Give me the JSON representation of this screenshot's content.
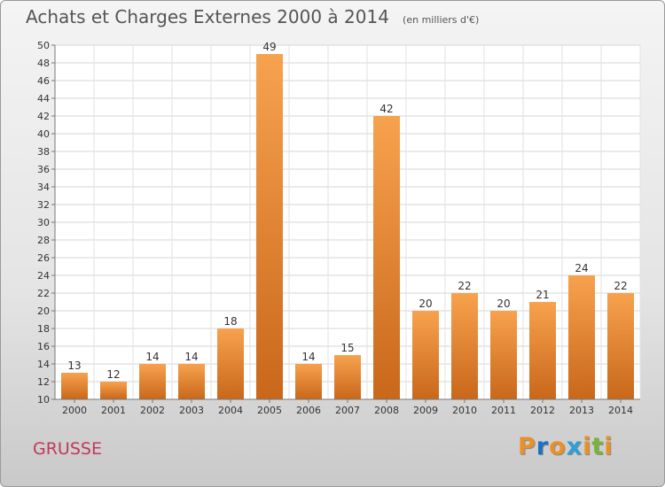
{
  "colors": {
    "bar_light": "#f7a24e",
    "bar_dark": "#c9671a",
    "commune": "#c0395a"
  },
  "chart_data": {
    "type": "bar",
    "title": "Achats et Charges Externes 2000 à 2014",
    "subtitle": "(en milliers d'€)",
    "categories": [
      "2000",
      "2001",
      "2002",
      "2003",
      "2004",
      "2005",
      "2006",
      "2007",
      "2008",
      "2009",
      "2010",
      "2011",
      "2012",
      "2013",
      "2014"
    ],
    "values": [
      13,
      12,
      14,
      14,
      18,
      49,
      14,
      15,
      42,
      20,
      22,
      20,
      21,
      24,
      22
    ],
    "ylim": [
      10,
      50
    ],
    "yticks": [
      10,
      12,
      14,
      16,
      18,
      20,
      22,
      24,
      26,
      28,
      30,
      32,
      34,
      36,
      38,
      40,
      42,
      44,
      46,
      48,
      50
    ],
    "grid": true,
    "data_labels": true
  },
  "footer": {
    "commune": "GRUSSE",
    "brand_letters": [
      {
        "ch": "P",
        "color": "#e8912a"
      },
      {
        "ch": "r",
        "color": "#1f6fc2"
      },
      {
        "ch": "o",
        "color": "#e8912a"
      },
      {
        "ch": "x",
        "color": "#2e9fd8"
      },
      {
        "ch": "i",
        "color": "#e8912a"
      },
      {
        "ch": "t",
        "color": "#7ab33a"
      },
      {
        "ch": "i",
        "color": "#e8912a"
      }
    ]
  }
}
